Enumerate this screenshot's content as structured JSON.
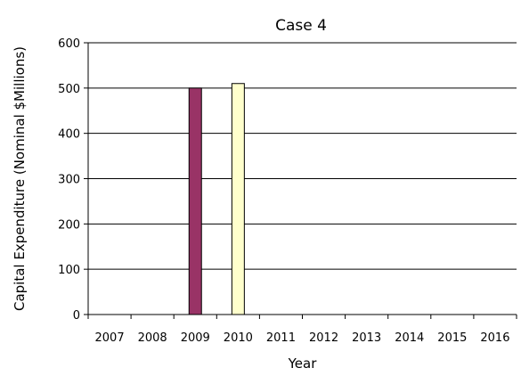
{
  "chart_data": {
    "type": "bar",
    "title": "Case 4",
    "xlabel": "Year",
    "ylabel": "Capital Expenditure (Nominal $Millions)",
    "categories": [
      "2007",
      "2008",
      "2009",
      "2010",
      "2011",
      "2012",
      "2013",
      "2014",
      "2015",
      "2016"
    ],
    "yticks": [
      0,
      100,
      200,
      300,
      400,
      500,
      600
    ],
    "ylim": [
      0,
      600
    ],
    "grid": true,
    "legend": "none",
    "series": [
      {
        "values": [
          0,
          0,
          500,
          0,
          0,
          0,
          0,
          0,
          0,
          0
        ],
        "color": "#993366"
      },
      {
        "values": [
          0,
          0,
          0,
          510,
          0,
          0,
          0,
          0,
          0,
          0
        ],
        "color": "#FFFFCC"
      }
    ]
  }
}
